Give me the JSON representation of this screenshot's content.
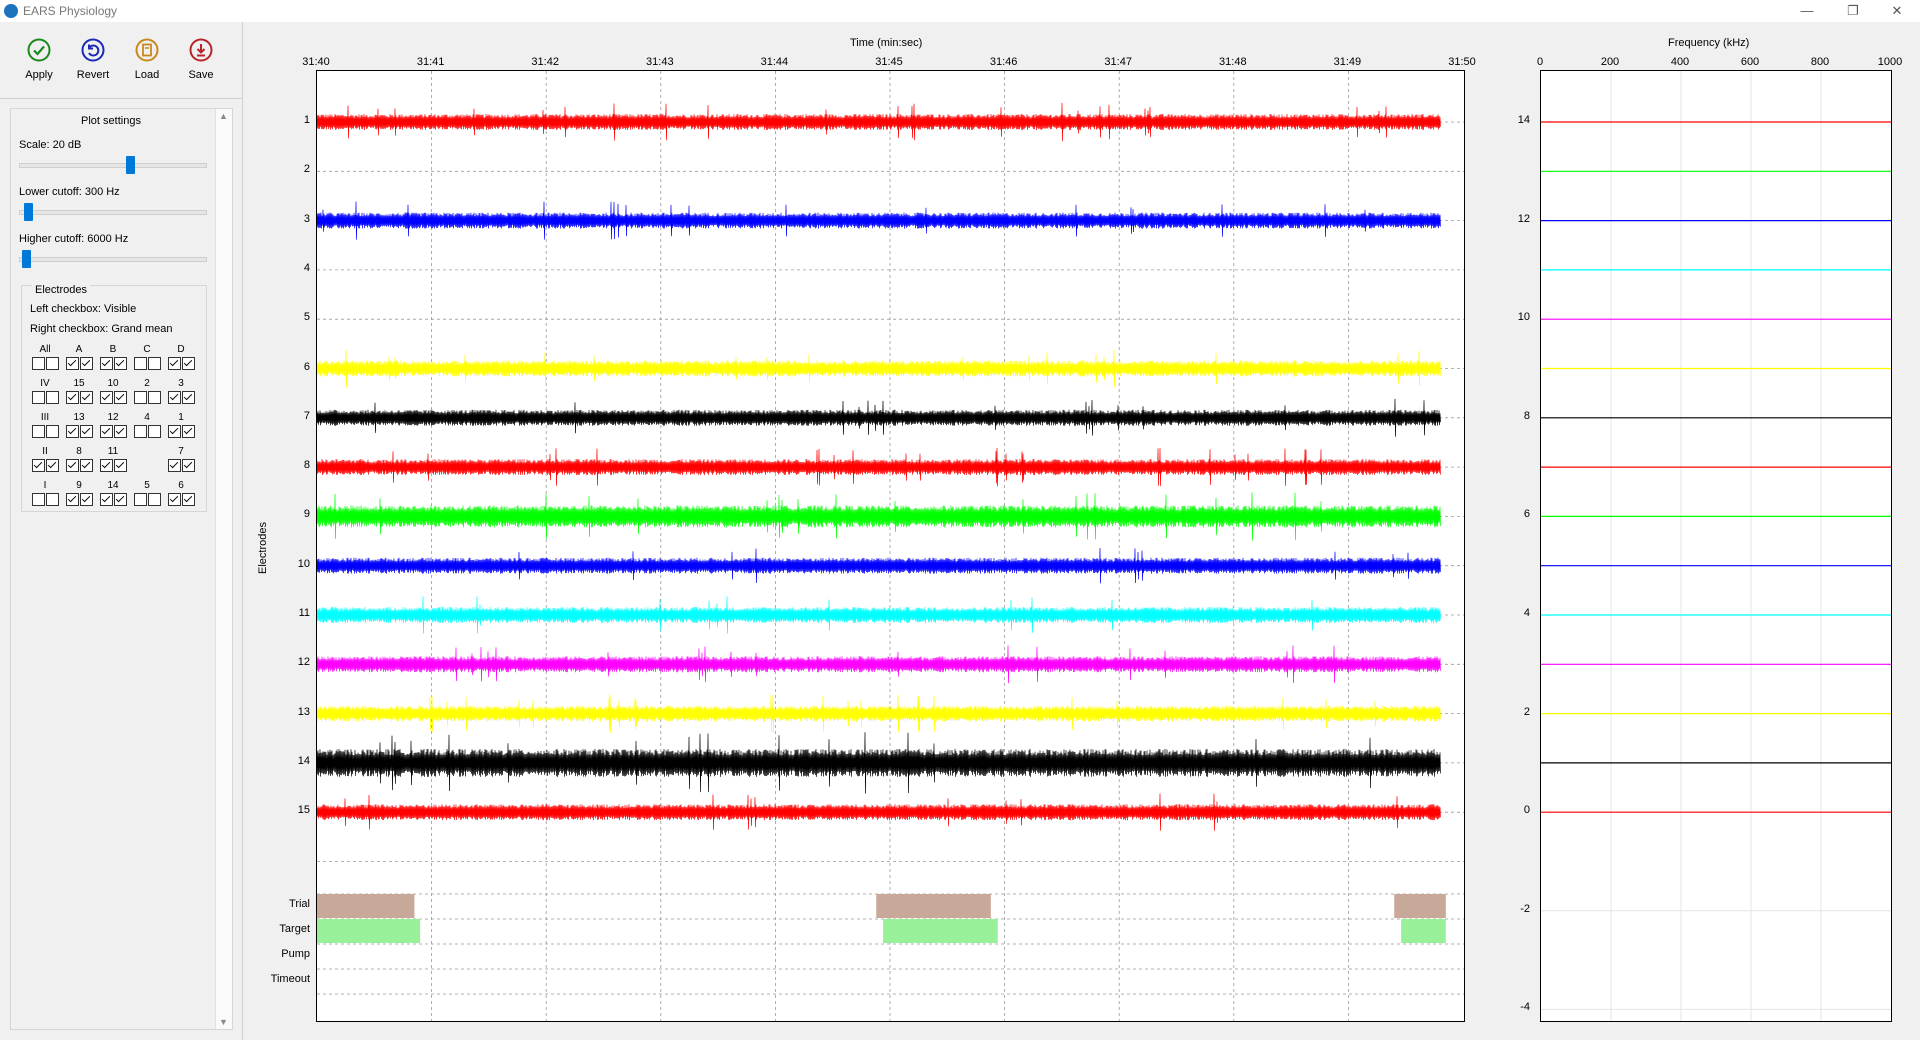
{
  "window": {
    "title": "EARS Physiology",
    "minimize": "—",
    "restore": "❐",
    "close": "✕"
  },
  "toolbar": [
    {
      "label": "Apply",
      "icon": "check-circle-icon",
      "color": "#1a8a1a"
    },
    {
      "label": "Revert",
      "icon": "undo-circle-icon",
      "color": "#1a2ab8"
    },
    {
      "label": "Load",
      "icon": "load-circle-icon",
      "color": "#c8891e"
    },
    {
      "label": "Save",
      "icon": "save-circle-icon",
      "color": "#b8242a"
    }
  ],
  "plot_settings": {
    "title": "Plot settings",
    "scale_label": "Scale: 20 dB",
    "scale_value": 0.6,
    "lower_label": "Lower cutoff: 300 Hz",
    "lower_value": 0.02,
    "higher_label": "Higher cutoff: 6000 Hz",
    "higher_value": 0.01,
    "electrodes": {
      "title": "Electrodes",
      "left_text": "Left checkbox: Visible",
      "right_text": "Right checkbox: Grand mean",
      "rows": [
        {
          "cells": [
            {
              "label": "All",
              "left": false,
              "right": false
            },
            {
              "label": "A",
              "left": true,
              "right": true
            },
            {
              "label": "B",
              "left": true,
              "right": true
            },
            {
              "label": "C",
              "left": false,
              "right": false
            },
            {
              "label": "D",
              "left": true,
              "right": true
            }
          ]
        },
        {
          "cells": [
            {
              "label": "IV",
              "left": false,
              "right": false
            },
            {
              "label": "15",
              "left": true,
              "right": true
            },
            {
              "label": "10",
              "left": true,
              "right": true
            },
            {
              "label": "2",
              "left": false,
              "right": false
            },
            {
              "label": "3",
              "left": true,
              "right": true
            }
          ]
        },
        {
          "cells": [
            {
              "label": "III",
              "left": false,
              "right": false
            },
            {
              "label": "13",
              "left": true,
              "right": true
            },
            {
              "label": "12",
              "left": true,
              "right": true
            },
            {
              "label": "4",
              "left": false,
              "right": false
            },
            {
              "label": "1",
              "left": true,
              "right": true
            }
          ]
        },
        {
          "cells": [
            {
              "label": "II",
              "left": true,
              "right": true
            },
            {
              "label": "8",
              "left": true,
              "right": true
            },
            {
              "label": "11",
              "left": true,
              "right": true
            },
            {
              "label": "",
              "left": null,
              "right": null
            },
            {
              "label": "7",
              "left": true,
              "right": true
            }
          ]
        },
        {
          "cells": [
            {
              "label": "I",
              "left": false,
              "right": false
            },
            {
              "label": "9",
              "left": true,
              "right": true
            },
            {
              "label": "14",
              "left": true,
              "right": true
            },
            {
              "label": "5",
              "left": false,
              "right": false
            },
            {
              "label": "6",
              "left": true,
              "right": true
            }
          ]
        }
      ]
    }
  },
  "chart_data": [
    {
      "type": "line",
      "title": "Time (min:sec)",
      "xlabel": "Time (min:sec)",
      "ylabel": "Electrodes",
      "x_ticks": [
        "31:40",
        "31:41",
        "31:42",
        "31:43",
        "31:44",
        "31:45",
        "31:46",
        "31:47",
        "31:48",
        "31:49",
        "31:50"
      ],
      "y_labels": [
        "1",
        "2",
        "3",
        "4",
        "5",
        "6",
        "7",
        "8",
        "9",
        "10",
        "11",
        "12",
        "13",
        "14",
        "15"
      ],
      "series": [
        {
          "name": "1",
          "color": "#ff0000",
          "visible": true
        },
        {
          "name": "2",
          "color": "#00ff00",
          "visible": false
        },
        {
          "name": "3",
          "color": "#0000ff",
          "visible": true
        },
        {
          "name": "4",
          "color": "#00ffff",
          "visible": false
        },
        {
          "name": "5",
          "color": "#ff00ff",
          "visible": false
        },
        {
          "name": "6",
          "color": "#ffff00",
          "visible": true
        },
        {
          "name": "7",
          "color": "#000000",
          "visible": true
        },
        {
          "name": "8",
          "color": "#ff0000",
          "visible": true
        },
        {
          "name": "9",
          "color": "#00ff00",
          "visible": true
        },
        {
          "name": "10",
          "color": "#0000ff",
          "visible": true
        },
        {
          "name": "11",
          "color": "#00ffff",
          "visible": true
        },
        {
          "name": "12",
          "color": "#ff00ff",
          "visible": true
        },
        {
          "name": "13",
          "color": "#ffff00",
          "visible": true
        },
        {
          "name": "14",
          "color": "#000000",
          "visible": true
        },
        {
          "name": "15",
          "color": "#ff0000",
          "visible": true
        }
      ],
      "event_rows": [
        "Trial",
        "Target",
        "Pump",
        "Timeout"
      ],
      "events": [
        {
          "row": "Trial",
          "color": "#c8a898",
          "intervals": [
            [
              0.0,
              0.85
            ],
            [
              4.88,
              5.88
            ],
            [
              9.4,
              9.85
            ]
          ]
        },
        {
          "row": "Target",
          "color": "#98f098",
          "intervals": [
            [
              0.0,
              0.9
            ],
            [
              4.94,
              5.94
            ],
            [
              9.46,
              9.85
            ]
          ]
        }
      ],
      "grid": true
    },
    {
      "type": "line",
      "title": "Frequency (kHz)",
      "xlabel": "Frequency (kHz)",
      "x_ticks": [
        "0",
        "200",
        "400",
        "600",
        "800",
        "1000"
      ],
      "xlim": [
        0,
        1000
      ],
      "y_ticks": [
        "14",
        "12",
        "10",
        "8",
        "6",
        "4",
        "2",
        "0",
        "-2",
        "-4"
      ],
      "ylim": [
        -4,
        15
      ],
      "series_levels": [
        {
          "level": 14,
          "color": "#ff0000"
        },
        {
          "level": 13,
          "color": "#00ff00"
        },
        {
          "level": 12,
          "color": "#0000ff"
        },
        {
          "level": 11,
          "color": "#00ffff"
        },
        {
          "level": 10,
          "color": "#ff00ff"
        },
        {
          "level": 9,
          "color": "#ffff00"
        },
        {
          "level": 8,
          "color": "#000000"
        },
        {
          "level": 7,
          "color": "#ff0000"
        },
        {
          "level": 6,
          "color": "#00ff00"
        },
        {
          "level": 5,
          "color": "#0000ff"
        },
        {
          "level": 4,
          "color": "#00ffff"
        },
        {
          "level": 3,
          "color": "#ff00ff"
        },
        {
          "level": 2,
          "color": "#ffff00"
        },
        {
          "level": 1,
          "color": "#000000"
        },
        {
          "level": 0,
          "color": "#ff0000"
        }
      ],
      "grid": true
    }
  ]
}
